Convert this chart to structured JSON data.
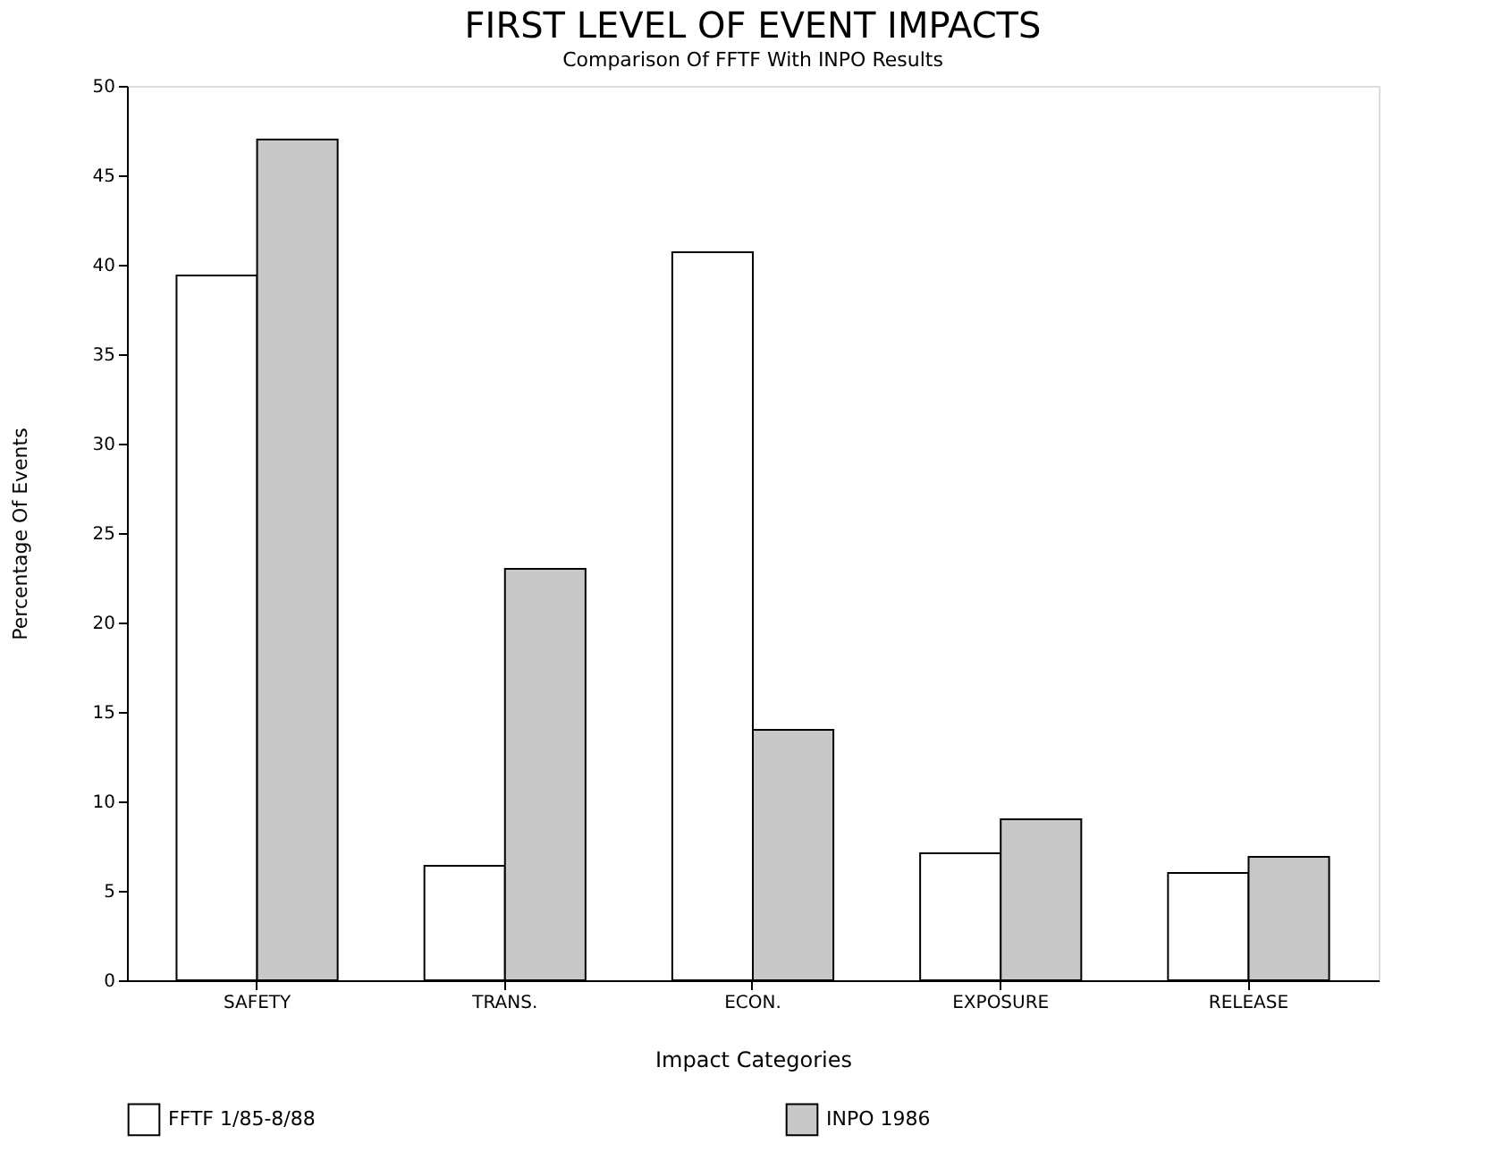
{
  "chart_data": {
    "type": "bar",
    "title": "FIRST LEVEL OF EVENT IMPACTS",
    "subtitle": "Comparison Of FFTF With INPO Results",
    "xlabel": "Impact Categories",
    "ylabel": "Percentage Of Events",
    "categories": [
      "SAFETY",
      "TRANS.",
      "ECON.",
      "EXPOSURE",
      "RELEASE"
    ],
    "series": [
      {
        "name": "FFTF 1/85-8/88",
        "color": "#ffffff",
        "values": [
          39.4,
          6.4,
          40.7,
          7.1,
          6.0
        ]
      },
      {
        "name": "INPO 1986",
        "color": "#c8c8c8",
        "values": [
          47.0,
          23.0,
          14.0,
          9.0,
          6.9
        ]
      }
    ],
    "ylim": [
      0,
      50
    ],
    "yticks": [
      0,
      5,
      10,
      15,
      20,
      25,
      30,
      35,
      40,
      45,
      50
    ],
    "grid": false,
    "legend": "bottom"
  }
}
